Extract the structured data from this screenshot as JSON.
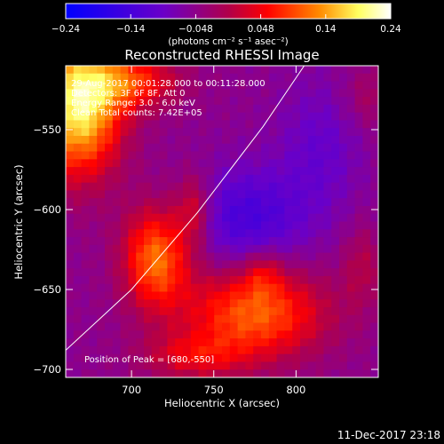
{
  "chart_data": {
    "type": "heatmap",
    "title": "Reconstructed RHESSI Image",
    "xlabel": "Heliocentric X (arcsec)",
    "ylabel": "Heliocentric Y (arcsec)",
    "xlim": [
      660,
      850
    ],
    "ylim": [
      -705,
      -510
    ],
    "x_ticks": [
      700,
      750,
      800
    ],
    "y_ticks": [
      -550,
      -600,
      -650,
      -700
    ],
    "x_tick_labels": [
      "700",
      "750",
      "800"
    ],
    "y_tick_labels": [
      "−550",
      "−600",
      "−650",
      "−700"
    ],
    "colorbar": {
      "range": [
        -0.24,
        0.24
      ],
      "ticks": [
        -0.24,
        -0.144,
        -0.048,
        0.048,
        0.144,
        0.24
      ],
      "tick_labels": [
        "−0.24",
        "−0.14",
        "−0.048",
        "0.048",
        "0.14",
        "0.24"
      ],
      "units_label": "(photons cm⁻² s⁻¹ asec⁻²)",
      "colors": [
        "#0000ff",
        "#6a00c8",
        "#ff0000",
        "#ff8a00",
        "#ffff60",
        "#ffffff"
      ]
    },
    "info": [
      "29-Aug-2017 00:01:28.000 to 00:11:28.000",
      "Detectors: 3F 6F 8F, Att 0",
      "Energy Range: 3.0 - 6.0 keV",
      "Clean    Total counts: 7.42E+05"
    ],
    "peak_label": "Position of Peak = [680,-550]",
    "peak": [
      680,
      -550
    ],
    "grid": false,
    "limb_arc": [
      [
        660,
        -688
      ],
      [
        700,
        -650
      ],
      [
        740,
        -602
      ],
      [
        780,
        -548
      ],
      [
        805,
        -510
      ]
    ],
    "grid_size": [
      40,
      40
    ],
    "blobs": [
      {
        "x": 668,
        "y": -535,
        "sx": 18,
        "sy": 30,
        "amp": 0.25
      },
      {
        "x": 700,
        "y": -520,
        "sx": 20,
        "sy": 12,
        "amp": 0.12
      },
      {
        "x": 715,
        "y": -630,
        "sx": 14,
        "sy": 22,
        "amp": 0.17
      },
      {
        "x": 738,
        "y": -600,
        "sx": 8,
        "sy": 16,
        "amp": 0.09
      },
      {
        "x": 775,
        "y": -665,
        "sx": 30,
        "sy": 20,
        "amp": 0.16
      },
      {
        "x": 738,
        "y": -692,
        "sx": 22,
        "sy": 10,
        "amp": 0.08
      },
      {
        "x": 780,
        "y": -640,
        "sx": 8,
        "sy": 10,
        "amp": 0.06
      },
      {
        "x": 840,
        "y": -635,
        "sx": 8,
        "sy": 18,
        "amp": 0.05
      },
      {
        "x": 770,
        "y": -605,
        "sx": 26,
        "sy": 22,
        "amp": -0.09
      },
      {
        "x": 815,
        "y": -560,
        "sx": 18,
        "sy": 30,
        "amp": -0.05
      },
      {
        "x": 845,
        "y": -530,
        "sx": 12,
        "sy": 14,
        "amp": 0.04
      }
    ],
    "base_level": -0.05
  },
  "timestamp": "11-Dec-2017 23:18"
}
